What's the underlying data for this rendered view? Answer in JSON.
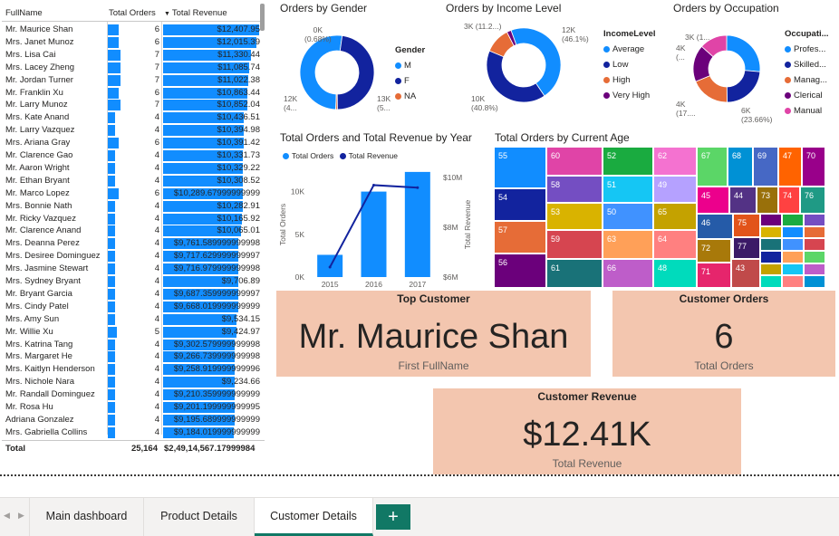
{
  "table": {
    "headers": {
      "name": "FullName",
      "orders": "Total Orders",
      "revenue": "Total Revenue"
    },
    "rows": [
      {
        "name": "Mr. Maurice Shan",
        "orders": "6",
        "revenue": "$12,407.95",
        "o": 6,
        "r": 12407.95
      },
      {
        "name": "Mrs. Janet Munoz",
        "orders": "6",
        "revenue": "$12,015.39",
        "o": 6,
        "r": 12015.39
      },
      {
        "name": "Mrs. Lisa Cai",
        "orders": "7",
        "revenue": "$11,330.44",
        "o": 7,
        "r": 11330.44
      },
      {
        "name": "Mrs. Lacey Zheng",
        "orders": "7",
        "revenue": "$11,085.74",
        "o": 7,
        "r": 11085.74
      },
      {
        "name": "Mr. Jordan Turner",
        "orders": "7",
        "revenue": "$11,022.38",
        "o": 7,
        "r": 11022.38
      },
      {
        "name": "Mr. Franklin Xu",
        "orders": "6",
        "revenue": "$10,863.44",
        "o": 6,
        "r": 10863.44
      },
      {
        "name": "Mr. Larry Munoz",
        "orders": "7",
        "revenue": "$10,852.04",
        "o": 7,
        "r": 10852.04
      },
      {
        "name": "Mrs. Kate Anand",
        "orders": "4",
        "revenue": "$10,436.51",
        "o": 4,
        "r": 10436.51
      },
      {
        "name": "Mr. Larry Vazquez",
        "orders": "4",
        "revenue": "$10,394.98",
        "o": 4,
        "r": 10394.98
      },
      {
        "name": "Mrs. Ariana Gray",
        "orders": "6",
        "revenue": "$10,391.42",
        "o": 6,
        "r": 10391.42
      },
      {
        "name": "Mr. Clarence Gao",
        "orders": "4",
        "revenue": "$10,331.73",
        "o": 4,
        "r": 10331.73
      },
      {
        "name": "Mr. Aaron Wright",
        "orders": "4",
        "revenue": "$10,329.22",
        "o": 4,
        "r": 10329.22
      },
      {
        "name": "Mr. Ethan Bryant",
        "orders": "4",
        "revenue": "$10,308.52",
        "o": 4,
        "r": 10308.52
      },
      {
        "name": "Mr. Marco Lopez",
        "orders": "6",
        "revenue": "$10,289.67999999999",
        "o": 6,
        "r": 10289.68
      },
      {
        "name": "Mrs. Bonnie Nath",
        "orders": "4",
        "revenue": "$10,282.91",
        "o": 4,
        "r": 10282.91
      },
      {
        "name": "Mr. Ricky Vazquez",
        "orders": "4",
        "revenue": "$10,165.92",
        "o": 4,
        "r": 10165.92
      },
      {
        "name": "Mr. Clarence Anand",
        "orders": "4",
        "revenue": "$10,065.01",
        "o": 4,
        "r": 10065.01
      },
      {
        "name": "Mrs. Deanna Perez",
        "orders": "4",
        "revenue": "$9,761.589999999998",
        "o": 4,
        "r": 9761.59
      },
      {
        "name": "Mrs. Desiree Dominguez",
        "orders": "4",
        "revenue": "$9,717.629999999997",
        "o": 4,
        "r": 9717.63
      },
      {
        "name": "Mrs. Jasmine Stewart",
        "orders": "4",
        "revenue": "$9,716.979999999998",
        "o": 4,
        "r": 9716.98
      },
      {
        "name": "Mrs. Sydney Bryant",
        "orders": "4",
        "revenue": "$9,706.89",
        "o": 4,
        "r": 9706.89
      },
      {
        "name": "Mr. Bryant Garcia",
        "orders": "4",
        "revenue": "$9,687.359999999997",
        "o": 4,
        "r": 9687.36
      },
      {
        "name": "Mrs. Cindy Patel",
        "orders": "4",
        "revenue": "$9,668.019999999999",
        "o": 4,
        "r": 9668.02
      },
      {
        "name": "Mrs. Amy Sun",
        "orders": "4",
        "revenue": "$9,534.15",
        "o": 4,
        "r": 9534.15
      },
      {
        "name": "Mr. Willie Xu",
        "orders": "5",
        "revenue": "$9,424.97",
        "o": 5,
        "r": 9424.97
      },
      {
        "name": "Mrs. Katrina Tang",
        "orders": "4",
        "revenue": "$9,302.579999999998",
        "o": 4,
        "r": 9302.58
      },
      {
        "name": "Mrs. Margaret He",
        "orders": "4",
        "revenue": "$9,266.739999999998",
        "o": 4,
        "r": 9266.74
      },
      {
        "name": "Mrs. Kaitlyn Henderson",
        "orders": "4",
        "revenue": "$9,258.919999999996",
        "o": 4,
        "r": 9258.92
      },
      {
        "name": "Mrs. Nichole Nara",
        "orders": "4",
        "revenue": "$9,234.66",
        "o": 4,
        "r": 9234.66
      },
      {
        "name": "Mr. Randall Dominguez",
        "orders": "4",
        "revenue": "$9,210.359999999999",
        "o": 4,
        "r": 9210.36
      },
      {
        "name": "Mr. Rosa Hu",
        "orders": "4",
        "revenue": "$9,201.199999999995",
        "o": 4,
        "r": 9201.2
      },
      {
        "name": "Adriana Gonzalez",
        "orders": "4",
        "revenue": "$9,195.689999999999",
        "o": 4,
        "r": 9195.69
      },
      {
        "name": "Mrs. Gabriella Collins",
        "orders": "4",
        "revenue": "$9,184.019999999999",
        "o": 4,
        "r": 9184.02
      }
    ],
    "total": {
      "label": "Total",
      "orders": "25,164",
      "revenue": "$2,49,14,567.17999984"
    }
  },
  "gender_chart": {
    "title": "Orders by Gender",
    "legend_title": "Gender",
    "slices": [
      {
        "name": "M",
        "value": 13,
        "label1": "13K",
        "label2": "(5...",
        "color": "#118dff"
      },
      {
        "name": "F",
        "value": 12,
        "label1": "12K",
        "label2": "(4...",
        "color": "#12239e"
      },
      {
        "name": "NA",
        "value": 0.17,
        "label1": "0K",
        "label2": "(0.68%)",
        "color": "#e66c37"
      }
    ]
  },
  "income_chart": {
    "title": "Orders by Income Level",
    "legend_title": "IncomeLevel",
    "slices": [
      {
        "name": "Average",
        "value": 46.1,
        "label1": "12K",
        "label2": "(46.1%)",
        "color": "#118dff"
      },
      {
        "name": "Low",
        "value": 40.8,
        "label1": "10K",
        "label2": "(40.8%)",
        "color": "#12239e"
      },
      {
        "name": "High",
        "value": 11.2,
        "label1": "3K (11.2...)",
        "label2": "",
        "color": "#e66c37"
      },
      {
        "name": "Very High",
        "value": 1.9,
        "label1": "",
        "label2": "",
        "color": "#6b007b"
      }
    ]
  },
  "occupation_chart": {
    "title": "Orders by Occupation",
    "legend_title": "Occupati...",
    "slices": [
      {
        "name": "Profes...",
        "value": 23.66,
        "label1": "6K",
        "label2": "(23.66%)",
        "color": "#118dff"
      },
      {
        "name": "Skilled...",
        "value": 21,
        "label1": "",
        "label2": "",
        "color": "#12239e"
      },
      {
        "name": "Manag...",
        "value": 17,
        "label1": "4K",
        "label2": "(17....",
        "color": "#e66c37"
      },
      {
        "name": "Clerical",
        "value": 16,
        "label1": "4K",
        "label2": "(...",
        "color": "#6b007b"
      },
      {
        "name": "Manual",
        "value": 12,
        "label1": "3K (1...",
        "label2": "",
        "color": "#e044a7"
      }
    ]
  },
  "year_chart": {
    "title": "Total Orders and Total Revenue by Year",
    "legend": [
      {
        "name": "Total Orders",
        "color": "#118dff"
      },
      {
        "name": "Total Revenue",
        "color": "#12239e"
      }
    ],
    "y_left_label": "Total Orders",
    "y_right_label": "Total Revenue",
    "left_ticks": [
      "0K",
      "5K",
      "10K"
    ],
    "right_ticks": [
      "$6M",
      "$8M",
      "$10M"
    ],
    "chart_data": {
      "type": "bar",
      "categories": [
        "2015",
        "2016",
        "2017"
      ],
      "series": [
        {
          "name": "Total Orders",
          "values": [
            2600,
            10000,
            12300
          ]
        },
        {
          "name": "Total Revenue",
          "values": [
            6400000,
            9700000,
            9600000
          ]
        }
      ],
      "ylim_left": [
        0,
        12500
      ],
      "ylim_right": [
        6000000,
        10300000
      ]
    }
  },
  "age_chart": {
    "title": "Total Orders by Current Age"
  },
  "treemap": [
    {
      "label": "55",
      "color": "#118dff"
    },
    {
      "label": "54",
      "color": "#12239e"
    },
    {
      "label": "57",
      "color": "#e66c37"
    },
    {
      "label": "56",
      "color": "#6b007b"
    },
    {
      "label": "60",
      "color": "#e044a7"
    },
    {
      "label": "58",
      "color": "#744ec2"
    },
    {
      "label": "53",
      "color": "#d9b300"
    },
    {
      "label": "59",
      "color": "#d64550"
    },
    {
      "label": "61",
      "color": "#197278"
    },
    {
      "label": "52",
      "color": "#1aab40"
    },
    {
      "label": "51",
      "color": "#15c6f4"
    },
    {
      "label": "50",
      "color": "#4092ff"
    },
    {
      "label": "63",
      "color": "#ffa058"
    },
    {
      "label": "66",
      "color": "#be5dc9"
    },
    {
      "label": "62",
      "color": "#f472d0"
    },
    {
      "label": "49",
      "color": "#b5a1ff"
    },
    {
      "label": "65",
      "color": "#c4a200"
    },
    {
      "label": "64",
      "color": "#ff8080"
    },
    {
      "label": "48",
      "color": "#00dbbc"
    },
    {
      "label": "67",
      "color": "#5bd667"
    },
    {
      "label": "68",
      "color": "#0091d5"
    },
    {
      "label": "69",
      "color": "#4668c5"
    },
    {
      "label": "47",
      "color": "#ff6300"
    },
    {
      "label": "70",
      "color": "#99008a"
    },
    {
      "label": "45",
      "color": "#ec008c"
    },
    {
      "label": "44",
      "color": "#533285"
    },
    {
      "label": "73",
      "color": "#99700a"
    },
    {
      "label": "74",
      "color": "#ff4141"
    },
    {
      "label": "76",
      "color": "#1f9a85"
    },
    {
      "label": "46",
      "color": "#255ba8"
    },
    {
      "label": "75",
      "color": "#e2541a"
    },
    {
      "label": "72",
      "color": "#a8790a"
    },
    {
      "label": "77",
      "color": "#3b1a67"
    },
    {
      "label": "71",
      "color": "#e6256c"
    },
    {
      "label": "43",
      "color": "#c04a4a"
    }
  ],
  "cards": {
    "top_customer": {
      "title": "Top Customer",
      "value": "Mr. Maurice Shan",
      "label": "First FullName"
    },
    "customer_orders": {
      "title": "Customer Orders",
      "value": "6",
      "label": "Total Orders"
    },
    "customer_revenue": {
      "title": "Customer Revenue",
      "value": "$12.41K",
      "label": "Total Revenue"
    }
  },
  "tabs": [
    {
      "label": "Main dashboard",
      "active": false
    },
    {
      "label": "Product Details",
      "active": false
    },
    {
      "label": "Customer Details",
      "active": true
    }
  ],
  "add_tab_label": "+"
}
